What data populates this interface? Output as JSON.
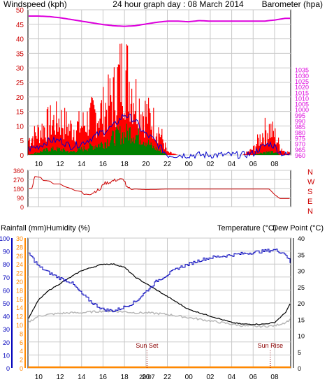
{
  "header": {
    "windspeed_label": "Windspeed (kph)",
    "title": "24 hour graph day : 08 March 2014",
    "barometer_label": "Barometer (hpa)"
  },
  "colors": {
    "wind_gust": "#ff0000",
    "wind_avg": "#0000cc",
    "wind_low": "#008000",
    "barometer": "#dd00dd",
    "direction": "#cc0000",
    "temperature": "#000000",
    "dew_point": "#b8b8b8",
    "humidity": "#0000bb",
    "rainfall": "#ff8800",
    "label_red": "#cc0000",
    "label_blue": "#0000aa",
    "grid": "#c8c8c8"
  },
  "x_ticks": [
    "10",
    "12",
    "14",
    "16",
    "18",
    "20",
    "22",
    "00",
    "02",
    "04",
    "06",
    "08"
  ],
  "compass_labels": [
    "N",
    "W",
    "S",
    "E",
    "N"
  ],
  "bottom_header": {
    "rainfall_label": "Rainfall (mm)",
    "humidity_label": "Humidity (%)",
    "temperature_label": "Temperature (°C)",
    "dewpoint_label": "Dew Point (°C)"
  },
  "sun_labels": {
    "sunset": "Sun Set",
    "sunrise": "Sun Rise",
    "sunset_time": "20:07"
  },
  "chart_data": [
    {
      "type": "line",
      "name": "wind_barometer",
      "x_hours": [
        9,
        33.5
      ],
      "ylim": [
        0,
        50
      ],
      "y2lim": [
        960,
        1087.5
      ],
      "yticks": [
        0,
        5,
        10,
        15,
        20,
        25,
        30,
        35,
        40,
        45,
        50
      ],
      "y2ticks": [
        960,
        965,
        970,
        975,
        980,
        985,
        990,
        995,
        1000,
        1005,
        1010,
        1015,
        1020,
        1025,
        1030,
        1035
      ],
      "series": [
        {
          "name": "gust",
          "x": [
            9,
            10,
            11,
            12,
            13,
            14,
            15,
            16,
            17,
            17.5,
            18,
            18.5,
            19,
            19.5,
            20,
            20.5,
            21,
            21.5,
            22,
            23,
            24,
            26,
            28,
            29,
            30,
            30.5,
            31,
            31.5,
            32,
            32.5,
            33
          ],
          "y": [
            5,
            8,
            11,
            12,
            9,
            10,
            13,
            15,
            20,
            26,
            29,
            25,
            20,
            16,
            14,
            12,
            10,
            6,
            1,
            0,
            0,
            0,
            0,
            0,
            2,
            5,
            8,
            9,
            7,
            3,
            1
          ]
        },
        {
          "name": "average",
          "x": [
            9,
            10,
            11,
            12,
            13,
            14,
            15,
            16,
            17,
            17.5,
            18,
            18.5,
            19,
            19.5,
            20,
            20.5,
            21,
            21.5,
            22,
            23,
            24,
            26,
            28,
            29,
            30,
            30.5,
            31,
            31.5,
            32,
            32.5,
            33
          ],
          "y": [
            2,
            3,
            5,
            5,
            3,
            4,
            6,
            8,
            10,
            12,
            14,
            13,
            12,
            9,
            7,
            6,
            4,
            2,
            0,
            0,
            0,
            0,
            0,
            0,
            0.5,
            2,
            3,
            4,
            3,
            1,
            0
          ]
        },
        {
          "name": "low",
          "x": [
            9,
            10,
            11,
            12,
            13,
            14,
            15,
            16,
            17,
            17.5,
            18,
            18.5,
            19,
            19.5,
            20,
            20.5,
            21,
            21.5,
            22,
            23,
            24,
            26,
            28,
            29,
            30,
            30.5,
            31,
            31.5,
            32,
            32.5,
            33
          ],
          "y": [
            0,
            1,
            2,
            2,
            1,
            2,
            3,
            4,
            6,
            7,
            7,
            8,
            7,
            6,
            5,
            3,
            2,
            1,
            0,
            0,
            0,
            0,
            0,
            0,
            0,
            0.5,
            1,
            1,
            1,
            0,
            0
          ]
        },
        {
          "name": "barometer",
          "x": [
            9,
            10,
            11,
            12,
            13,
            14,
            15,
            16,
            17,
            18,
            19,
            20,
            21,
            22,
            23,
            24,
            25,
            26,
            27,
            28,
            29,
            30,
            31,
            32,
            33,
            33.5
          ],
          "y": [
            1082,
            1082,
            1081.5,
            1080.5,
            1079,
            1077.5,
            1076,
            1074.5,
            1073.5,
            1073,
            1073.5,
            1075,
            1076.5,
            1077.5,
            1077.5,
            1077,
            1078,
            1077.5,
            1077.5,
            1077.5,
            1077.5,
            1077.5,
            1077.5,
            1078.5,
            1080,
            1080
          ]
        }
      ]
    },
    {
      "type": "line",
      "name": "wind_direction",
      "ylim": [
        0,
        360
      ],
      "yticks": [
        0,
        90,
        180,
        270,
        360
      ],
      "series": [
        {
          "name": "direction",
          "x": [
            9,
            9.4,
            9.6,
            10.2,
            10.4,
            11,
            11.4,
            12,
            12.4,
            13,
            13.4,
            14,
            14.2,
            15,
            15.4,
            15.8,
            16,
            16.6,
            17,
            17.6,
            18,
            18.2,
            18.6,
            19,
            20,
            21,
            22,
            24,
            26,
            28,
            30,
            31,
            31.5,
            32,
            32.5,
            33
          ],
          "y": [
            180,
            180,
            300,
            290,
            260,
            255,
            225,
            225,
            200,
            180,
            160,
            150,
            120,
            135,
            160,
            170,
            230,
            240,
            260,
            270,
            265,
            190,
            170,
            175,
            170,
            172,
            175,
            175,
            175,
            175,
            175,
            175,
            175,
            120,
            80,
            80
          ]
        }
      ]
    },
    {
      "type": "line",
      "name": "temp_humidity_rain",
      "rain_ylim": [
        0,
        30
      ],
      "rain_yticks": [
        0,
        2,
        4,
        6,
        8,
        10,
        12,
        14,
        16,
        18,
        20,
        22,
        24,
        26,
        28,
        30
      ],
      "humidity_ylim": [
        0,
        100
      ],
      "humidity_yticks": [
        0,
        10,
        20,
        30,
        40,
        50,
        60,
        70,
        80,
        90,
        100
      ],
      "temp_ylim": [
        0,
        40
      ],
      "temp_yticks": [
        0,
        5,
        10,
        15,
        20,
        25,
        30,
        35,
        40
      ],
      "series": [
        {
          "name": "temperature",
          "x": [
            9,
            10,
            11,
            12,
            13,
            14,
            15,
            16,
            17,
            18,
            19,
            20,
            21,
            22,
            23,
            24,
            25,
            26,
            27,
            28,
            29,
            30,
            31,
            32,
            33,
            33.5
          ],
          "y": [
            15,
            21,
            24,
            26,
            28,
            30,
            31,
            32,
            32,
            31,
            28,
            26,
            24,
            22,
            20,
            18,
            17,
            16,
            15,
            14,
            13.5,
            13.5,
            13.5,
            14,
            17,
            20
          ]
        },
        {
          "name": "dew_point",
          "x": [
            9,
            10,
            11,
            12,
            13,
            14,
            15,
            16,
            17,
            18,
            19,
            20,
            21,
            22,
            23,
            24,
            25,
            26,
            27,
            28,
            29,
            30,
            31,
            32,
            33,
            33.5
          ],
          "y": [
            14,
            16,
            16.5,
            16.8,
            17,
            17,
            17.3,
            17.5,
            17.5,
            17.3,
            17,
            17,
            16.8,
            16.5,
            16,
            15.5,
            15,
            14.5,
            14,
            13.5,
            13,
            12.8,
            12.8,
            13,
            14,
            15
          ]
        },
        {
          "name": "humidity",
          "x": [
            9,
            10,
            11,
            12,
            13,
            14,
            15,
            16,
            17,
            18,
            19,
            20,
            21,
            22,
            23,
            24,
            25,
            26,
            27,
            28,
            29,
            30,
            31,
            32,
            33,
            33.5
          ],
          "y": [
            89,
            78,
            73,
            69,
            66,
            57,
            50,
            45,
            44,
            47,
            51,
            59,
            67,
            72,
            77,
            80,
            83,
            85,
            86,
            87,
            88,
            89,
            90,
            91,
            88,
            80
          ]
        },
        {
          "name": "rainfall",
          "x": [
            9,
            33.5
          ],
          "y": [
            0,
            0
          ]
        }
      ]
    }
  ]
}
